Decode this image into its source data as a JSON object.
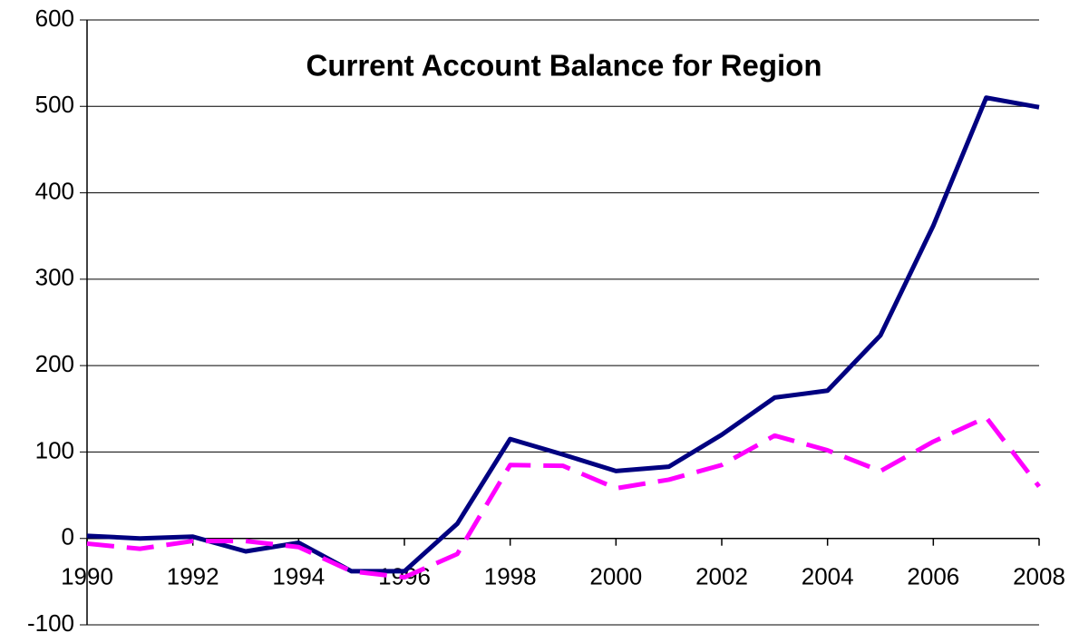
{
  "chart_data": {
    "type": "line",
    "title": "Current Account Balance for Region",
    "x": [
      1990,
      1991,
      1992,
      1993,
      1994,
      1995,
      1996,
      1997,
      1998,
      1999,
      2000,
      2001,
      2002,
      2003,
      2004,
      2005,
      2006,
      2007,
      2008
    ],
    "series": [
      {
        "color": "#000080",
        "dash": "solid",
        "values": [
          3,
          0,
          2,
          -15,
          -5,
          -38,
          -38,
          17,
          115,
          97,
          78,
          83,
          120,
          163,
          171,
          235,
          362,
          510,
          499
        ]
      },
      {
        "color": "#ff00ff",
        "dash": "dashed",
        "values": [
          -6,
          -12,
          -3,
          -3,
          -10,
          -38,
          -45,
          -18,
          85,
          84,
          58,
          68,
          85,
          119,
          102,
          78,
          112,
          140,
          60
        ]
      }
    ],
    "xlim": [
      1990,
      2008
    ],
    "xticks": [
      1990,
      1992,
      1994,
      1996,
      1998,
      2000,
      2002,
      2004,
      2006,
      2008
    ],
    "ylim": [
      -100,
      600
    ],
    "yticks": [
      -100,
      0,
      100,
      200,
      300,
      400,
      500,
      600
    ],
    "grid": true
  }
}
